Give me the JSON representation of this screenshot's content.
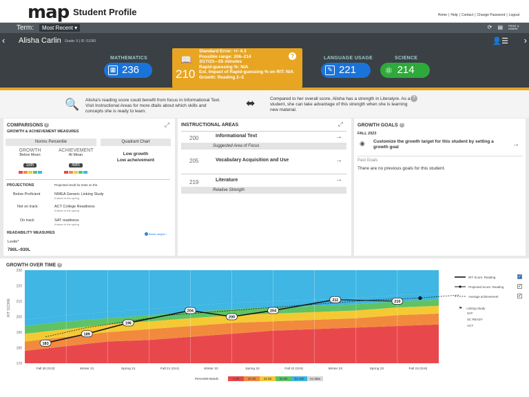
{
  "header": {
    "logo": "map",
    "title": "Student Profile",
    "links": [
      "Home",
      "|",
      "Help",
      "|",
      "Contact",
      "|",
      "Change Password",
      "|",
      "Logout"
    ]
  },
  "termbar": {
    "label": "Term:",
    "selected": "Most Recent",
    "print_label": "PRINT & SHARE"
  },
  "student": {
    "name": "Alisha Carlin",
    "grade_id": "Grade: 5 | ID: 51050"
  },
  "scores": {
    "math": {
      "label": "MATHEMATICS",
      "value": "236",
      "color": "#1a73d9"
    },
    "language": {
      "label": "LANGUAGE USAGE",
      "value": "221",
      "color": "#1a73d9"
    },
    "science": {
      "label": "SCIENCE",
      "value": "214",
      "color": "#2eaa3b"
    },
    "reading": {
      "value": "210",
      "lines": [
        "Standard Error: +/- 4.3",
        "Possible range: 206–214",
        "3/17/23—55 minutes",
        "Rapid-guessing %: N/A",
        "Est. Impact of Rapid-guessing % on RIT: N/A",
        "Growth: Reading 2–5"
      ],
      "color": "#e8a522"
    }
  },
  "info": {
    "left": "Alisha's reading score could benefit from focus in Informational Text. Visit Instructional Areas for more dtails about which skills and concepts she is ready to learn.",
    "right": "Compared to her overall score, Alisha has a strength in Literatyre. As a student, she can take advantage of this strength when she is learning new material."
  },
  "comparisons": {
    "title": "COMPARISONS",
    "subtitle": "GROWTH & ACHIEVEMENT MEASURES",
    "norms_tab": "Norms Percentile",
    "quadrant_tab": "Quadrant Chart",
    "growth_label": "GROWTH",
    "growth_sub": "Below Mean",
    "growth_pct": "18th",
    "ach_label": "ACHIEVEMENT",
    "ach_sub": "At Mean",
    "ach_pct": "48th",
    "quadrant_line1": "Low growth",
    "quadrant_line2": "Low acheivement",
    "projections_title": "PROJECTIONS",
    "projections_note": "Projected result for tests on the",
    "projections": [
      {
        "status": "Below Proficient",
        "test": "NWEA Generic Linking Study",
        "note": "if taken in the spring"
      },
      {
        "status": "Not on track",
        "test": "ACT College Readiness",
        "note": "if taken in the spring"
      },
      {
        "status": "On track",
        "test": "SAT readiness",
        "note": "if taken in the spring"
      }
    ],
    "readability_title": "READABILITY MEASURES",
    "about_link": "About ranges",
    "lexile_label": "Lexile*",
    "lexile_value": "780L–930L"
  },
  "instructional": {
    "title": "INSTRUCTIONAL AREAS",
    "areas": [
      {
        "score": "200",
        "name": "Informational Text",
        "note": "Suggested Area of Focus"
      },
      {
        "score": "205",
        "name": "Vocabulary Acquisition and Use",
        "note": ""
      },
      {
        "score": "219",
        "name": "Literature",
        "note": "Relative Strength"
      }
    ]
  },
  "goals": {
    "title": "GROWTH GOALS",
    "term": "FALL 2023",
    "cta": "Customize the growth target for this student by setting a growth goal",
    "past_label": "Past Goals",
    "empty": "There are no previous goals for this student."
  },
  "chart_data": {
    "type": "area",
    "title": "GROWTH OVER TIME",
    "ylabel": "RIT SCORE",
    "ylim": [
      170,
      230
    ],
    "yticks": [
      170,
      175,
      180,
      185,
      190,
      195,
      200,
      205,
      210,
      215,
      220,
      225,
      230
    ],
    "ytick_labels": [
      "170",
      "",
      "180",
      "",
      "190",
      "",
      "200",
      "",
      "210",
      "",
      "220",
      "",
      "230"
    ],
    "categories": [
      "Fall 20 (Gr3)",
      "Winter 21",
      "Spring 21",
      "Fall 21 (Gr4)",
      "Winter 22",
      "Spring 22",
      "Fall 22 (Gr5)",
      "Winter 23",
      "Spring 23",
      "Fall 23 (Gr6)"
    ],
    "band_boundaries": [
      [
        178,
        184,
        189,
        194,
        198
      ],
      [
        181,
        187,
        192,
        197,
        201
      ],
      [
        184,
        190,
        195,
        199,
        203
      ],
      [
        185,
        192,
        197,
        201,
        205
      ],
      [
        187,
        194,
        199,
        203,
        207
      ],
      [
        189,
        196,
        201,
        205,
        209
      ],
      [
        191,
        197,
        202,
        206,
        210
      ],
      [
        192,
        198,
        203,
        207,
        211
      ],
      [
        193,
        199,
        204,
        208,
        212
      ],
      [
        194,
        201,
        206,
        210,
        214
      ],
      [
        195,
        202,
        207,
        211,
        215
      ]
    ],
    "bands": [
      {
        "name": "1-20",
        "color": "#e8484c"
      },
      {
        "name": "21-40",
        "color": "#f28a3e"
      },
      {
        "name": "41-60",
        "color": "#f5c934"
      },
      {
        "name": "61-80",
        "color": "#5fc364"
      },
      {
        "name": "81-100",
        "color": "#3fb6e3"
      },
      {
        "name": "no data",
        "color": "#d8d8d8"
      }
    ],
    "band_legend_title": "Percentile Bands",
    "series": [
      {
        "name": "RIT Score: Reading",
        "x": [
          0.5,
          1.5,
          2.5,
          4.0,
          5.0,
          6.0,
          7.5
        ],
        "values": [
          183,
          189,
          196,
          204,
          200,
          204,
          211
        ],
        "labels": [
          "183",
          "189",
          "196",
          "204",
          "200",
          "204",
          "211"
        ]
      },
      {
        "name": "Projected Score: Reading",
        "x": [
          7.5,
          9.0
        ],
        "values": [
          211,
          210
        ],
        "labels": [
          "",
          "210"
        ]
      },
      {
        "name": "Average achievement",
        "x": [
          0.5,
          1.5,
          2.5,
          3.5,
          4.5,
          5.5,
          6.5,
          7.5,
          8.5,
          9.5,
          10.5
        ],
        "values": [
          187,
          193,
          197,
          201,
          203,
          205,
          207,
          209,
          211,
          212,
          214
        ]
      }
    ],
    "legend": [
      "RIT Score: Reading",
      "Projected Score: Reading",
      "Average achievement"
    ],
    "linking_title": "Linking Study",
    "linking_items": [
      "SAT",
      "SC READY",
      "ACT"
    ]
  }
}
